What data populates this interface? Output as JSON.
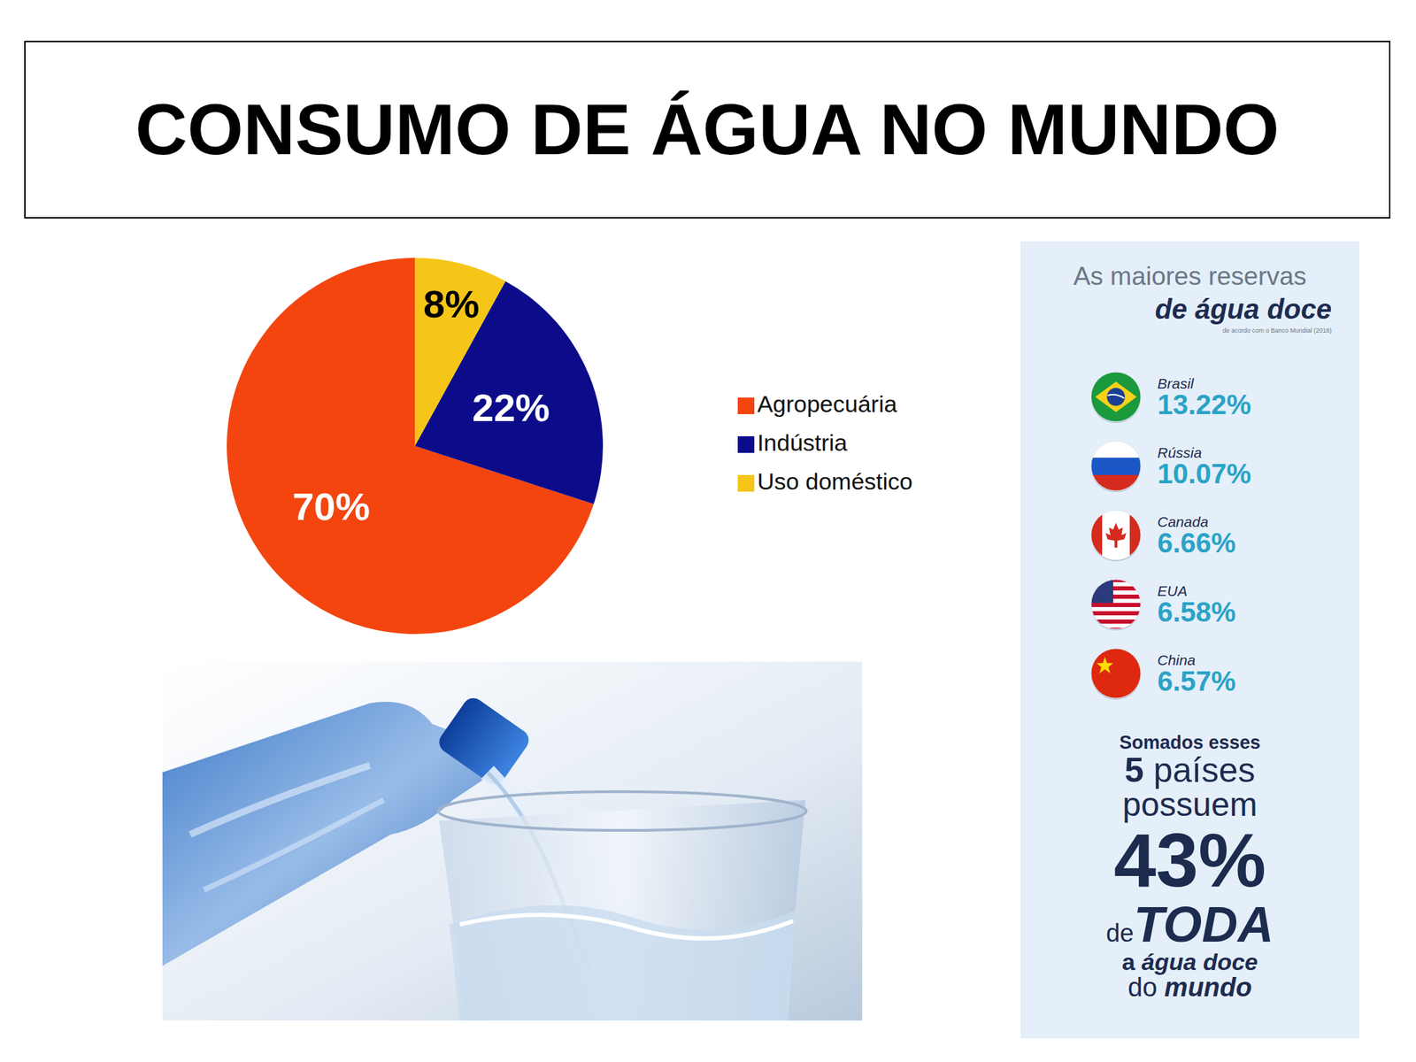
{
  "title": "CONSUMO DE ÁGUA NO MUNDO",
  "chart_data": {
    "type": "pie",
    "categories": [
      "Agropecuária",
      "Indústria",
      "Uso doméstico"
    ],
    "values": [
      70,
      22,
      8
    ],
    "value_labels": [
      "70%",
      "22%",
      "8%"
    ],
    "colors": [
      "#f4450f",
      "#0c0c8a",
      "#f5c518"
    ],
    "data_labels": true,
    "legend": "right"
  },
  "panel": {
    "heading": [
      "As maiores reservas",
      "de água doce"
    ],
    "source": "de acordo com o Banco Mundial (2018)",
    "reserves": [
      {
        "country": "Brasil",
        "share": "13.22%"
      },
      {
        "country": "Rússia",
        "share": "10.07%"
      },
      {
        "country": "Canada",
        "share": "6.66%"
      },
      {
        "country": "EUA",
        "share": "6.58%"
      },
      {
        "country": "China",
        "share": "6.57%"
      }
    ],
    "summary": [
      [
        "Somados esses"
      ],
      [
        "5",
        " países"
      ],
      [
        "possuem"
      ],
      [
        "43%"
      ],
      [
        "de",
        "TODA"
      ],
      [
        "a ",
        "água doce"
      ],
      [
        "do ",
        "mundo"
      ]
    ]
  }
}
